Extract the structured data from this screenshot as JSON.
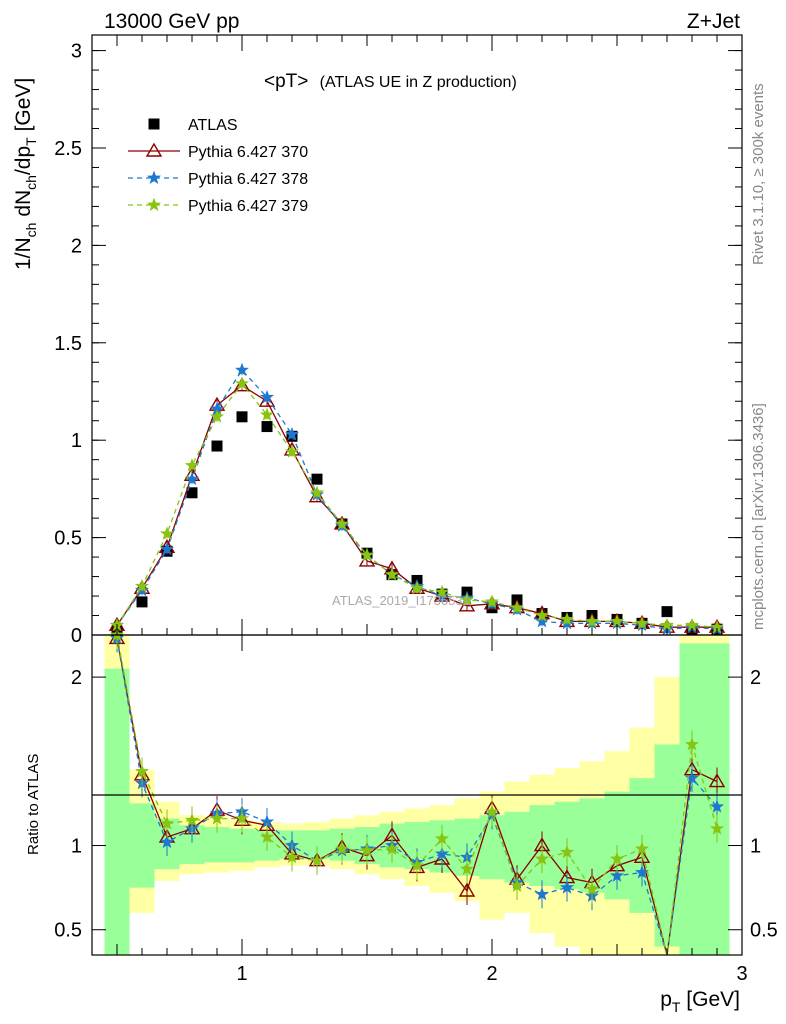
{
  "header": {
    "energy_label": "13000 GeV pp",
    "process_label": "Z+Jet",
    "plot_title_main": "<pT>",
    "plot_title_sub": "(ATLAS UE in Z production)",
    "side_rivet": "Rivet 3.1.10, ≥ 300k events",
    "side_mcplots": "mcplots.cern.ch [arXiv:1306.3436]",
    "watermark": "ATLAS_2019_I1736531"
  },
  "legend": [
    {
      "label": "ATLAS",
      "color": "#000000",
      "marker": "square",
      "dash": "none"
    },
    {
      "label": "Pythia 6.427 370",
      "color": "#8b0000",
      "marker": "triangle",
      "dash": "solid"
    },
    {
      "label": "Pythia 6.427 378",
      "color": "#1f78d0",
      "marker": "star",
      "dash": "dashed"
    },
    {
      "label": "Pythia 6.427 379",
      "color": "#88c411",
      "marker": "star",
      "dash": "dashed"
    }
  ],
  "chart_data": [
    {
      "type": "scatter",
      "panel": "main",
      "ylabel_main": "1/N",
      "ylabel_sub1": "ch",
      "ylabel_mid": " dN",
      "ylabel_sub2": "ch",
      "ylabel_mid2": "/dp",
      "ylabel_sub3": "T",
      "ylabel_unit": " [GeV]",
      "xlim": [
        0.4,
        3.0
      ],
      "ylim": [
        0,
        3.08
      ],
      "yticks": [
        0,
        0.5,
        1,
        1.5,
        2,
        2.5,
        3
      ],
      "ytick_labels": [
        "0",
        "0.5",
        "1",
        "1.5",
        "2",
        "2.5",
        "3"
      ],
      "x": [
        0.5,
        0.6,
        0.7,
        0.8,
        0.9,
        1.0,
        1.1,
        1.2,
        1.3,
        1.4,
        1.5,
        1.6,
        1.7,
        1.8,
        1.9,
        2.0,
        2.1,
        2.2,
        2.3,
        2.4,
        2.5,
        2.6,
        2.7,
        2.8,
        2.9
      ],
      "series": [
        {
          "name": "ATLAS",
          "values": [
            0.02,
            0.17,
            0.43,
            0.73,
            0.97,
            1.12,
            1.07,
            1.02,
            0.8,
            0.57,
            0.42,
            0.31,
            0.28,
            0.21,
            0.22,
            0.14,
            0.18,
            0.11,
            0.09,
            0.1,
            0.08,
            0.06,
            0.12,
            0.03,
            0.03
          ]
        },
        {
          "name": "Pythia 6.427 370",
          "values": [
            0.05,
            0.24,
            0.45,
            0.82,
            1.18,
            1.28,
            1.2,
            0.95,
            0.71,
            0.57,
            0.38,
            0.34,
            0.24,
            0.2,
            0.15,
            0.16,
            0.14,
            0.11,
            0.07,
            0.07,
            0.07,
            0.06,
            0.04,
            0.04,
            0.04
          ]
        },
        {
          "name": "Pythia 6.427 378",
          "values": [
            0.05,
            0.23,
            0.44,
            0.8,
            1.16,
            1.36,
            1.22,
            1.03,
            0.72,
            0.56,
            0.41,
            0.31,
            0.25,
            0.2,
            0.19,
            0.16,
            0.13,
            0.07,
            0.06,
            0.06,
            0.06,
            0.05,
            0.03,
            0.04,
            0.03
          ]
        },
        {
          "name": "Pythia 6.427 379",
          "values": [
            0.05,
            0.25,
            0.52,
            0.87,
            1.12,
            1.29,
            1.13,
            0.94,
            0.73,
            0.57,
            0.41,
            0.31,
            0.24,
            0.22,
            0.18,
            0.17,
            0.14,
            0.1,
            0.08,
            0.07,
            0.07,
            0.06,
            0.05,
            0.05,
            0.04
          ]
        }
      ]
    },
    {
      "type": "scatter",
      "panel": "ratio",
      "xlabel_main": "p",
      "xlabel_sub": "T",
      "xlabel_unit": " [GeV]",
      "ylabel": "Ratio to ATLAS",
      "xlim": [
        0.4,
        3.0
      ],
      "ylim": [
        0.35,
        2.25
      ],
      "xticks": [
        1,
        2,
        3
      ],
      "xtick_labels": [
        "1",
        "2",
        "3"
      ],
      "yticks": [
        0.5,
        1,
        2
      ],
      "ytick_labels": [
        "0.5",
        "1",
        "2"
      ],
      "x": [
        0.5,
        0.6,
        0.7,
        0.8,
        0.9,
        1.0,
        1.1,
        1.2,
        1.3,
        1.4,
        1.5,
        1.6,
        1.7,
        1.8,
        1.9,
        2.0,
        2.1,
        2.2,
        2.3,
        2.4,
        2.5,
        2.6,
        2.7,
        2.8,
        2.9
      ],
      "band_edges": [
        0.45,
        0.55,
        0.65,
        0.75,
        0.85,
        0.95,
        1.05,
        1.15,
        1.25,
        1.35,
        1.45,
        1.55,
        1.65,
        1.75,
        1.85,
        1.95,
        2.05,
        2.15,
        2.25,
        2.35,
        2.45,
        2.55,
        2.65,
        2.75,
        2.85,
        2.95
      ],
      "band_stat_lo": [
        0.3,
        0.75,
        0.86,
        0.89,
        0.9,
        0.9,
        0.91,
        0.92,
        0.92,
        0.91,
        0.89,
        0.87,
        0.86,
        0.84,
        0.82,
        0.8,
        0.78,
        0.76,
        0.74,
        0.72,
        0.68,
        0.6,
        0.4,
        0.3,
        0.3
      ],
      "band_stat_hi": [
        2.05,
        1.25,
        1.16,
        1.12,
        1.11,
        1.1,
        1.09,
        1.09,
        1.09,
        1.1,
        1.11,
        1.13,
        1.14,
        1.15,
        1.16,
        1.18,
        1.2,
        1.24,
        1.26,
        1.28,
        1.32,
        1.4,
        1.6,
        2.2,
        2.2
      ],
      "band_tot_lo": [
        0.3,
        0.6,
        0.79,
        0.83,
        0.84,
        0.85,
        0.87,
        0.88,
        0.88,
        0.86,
        0.83,
        0.8,
        0.76,
        0.72,
        0.67,
        0.56,
        0.6,
        0.48,
        0.4,
        0.3,
        0.3,
        0.3,
        0.3,
        0.3,
        0.3
      ],
      "band_tot_hi": [
        2.3,
        1.45,
        1.26,
        1.18,
        1.17,
        1.15,
        1.14,
        1.13,
        1.14,
        1.16,
        1.18,
        1.2,
        1.22,
        1.24,
        1.28,
        1.32,
        1.38,
        1.42,
        1.46,
        1.5,
        1.56,
        1.7,
        2.0,
        2.3,
        2.3
      ],
      "series": [
        {
          "name": "Pythia 6.427 370",
          "values": [
            2.23,
            1.42,
            1.05,
            1.1,
            1.21,
            1.15,
            1.12,
            0.95,
            0.91,
            0.99,
            0.94,
            1.06,
            0.87,
            0.92,
            0.73,
            1.22,
            0.8,
            1.0,
            0.81,
            0.78,
            0.88,
            0.93,
            0.3,
            1.45,
            1.38
          ]
        },
        {
          "name": "Pythia 6.427 378",
          "values": [
            2.23,
            1.37,
            1.02,
            1.1,
            1.19,
            1.2,
            1.14,
            1.0,
            0.91,
            0.97,
            0.98,
            1.0,
            0.9,
            0.95,
            0.93,
            1.18,
            0.78,
            0.71,
            0.75,
            0.7,
            0.82,
            0.84,
            0.3,
            1.4,
            1.23
          ]
        },
        {
          "name": "Pythia 6.427 379",
          "values": [
            2.25,
            1.44,
            1.13,
            1.15,
            1.16,
            1.16,
            1.05,
            0.93,
            0.91,
            0.98,
            0.97,
            0.98,
            0.88,
            1.04,
            0.86,
            1.2,
            0.76,
            0.92,
            0.96,
            0.74,
            0.92,
            0.98,
            0.3,
            1.6,
            1.1
          ]
        }
      ]
    }
  ]
}
